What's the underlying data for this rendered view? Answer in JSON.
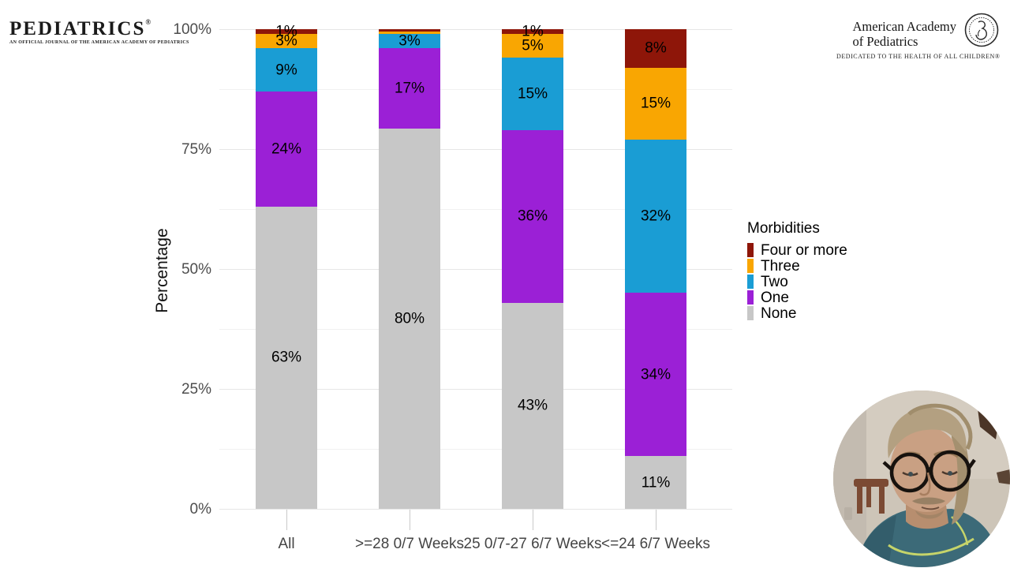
{
  "header": {
    "pediatrics_logo": {
      "title": "PEDIATRICS",
      "registered_mark": "®",
      "subtitle": "AN OFFICIAL JOURNAL OF THE AMERICAN ACADEMY OF PEDIATRICS"
    },
    "aap_logo": {
      "name_line1": "American Academy",
      "name_line2": "of Pediatrics",
      "tagline": "DEDICATED TO THE HEALTH OF ALL CHILDREN®"
    }
  },
  "chart_data": {
    "type": "bar",
    "stacked": true,
    "orientation": "vertical",
    "title": "",
    "xlabel": "",
    "ylabel": "Percentage",
    "ylim": [
      0,
      100
    ],
    "yticks": [
      "0%",
      "25%",
      "50%",
      "75%",
      "100%"
    ],
    "grid": true,
    "legend": {
      "title": "Morbidities",
      "position": "right"
    },
    "categories": [
      "All",
      ">=28 0/7 Weeks",
      "25 0/7-27 6/7 Weeks",
      "<=24 6/7 Weeks"
    ],
    "series": [
      {
        "name": "Four or more",
        "color": "#8e1609",
        "values": [
          1,
          0.5,
          1,
          8
        ],
        "labels": [
          "1%",
          "",
          "1%",
          "8%"
        ]
      },
      {
        "name": "Three",
        "color": "#f9a602",
        "values": [
          3,
          0.5,
          5,
          15
        ],
        "labels": [
          "3%",
          "",
          "5%",
          "15%"
        ]
      },
      {
        "name": "Two",
        "color": "#1a9dd4",
        "values": [
          9,
          3,
          15,
          32
        ],
        "labels": [
          "9%",
          "3%",
          "15%",
          "32%"
        ]
      },
      {
        "name": "One",
        "color": "#9b20d6",
        "values": [
          24,
          17,
          36,
          34
        ],
        "labels": [
          "24%",
          "17%",
          "36%",
          "34%"
        ]
      },
      {
        "name": "None",
        "color": "#c7c7c7",
        "values": [
          63,
          80,
          43,
          11
        ],
        "labels": [
          "63%",
          "80%",
          "43%",
          "11%"
        ]
      }
    ]
  }
}
